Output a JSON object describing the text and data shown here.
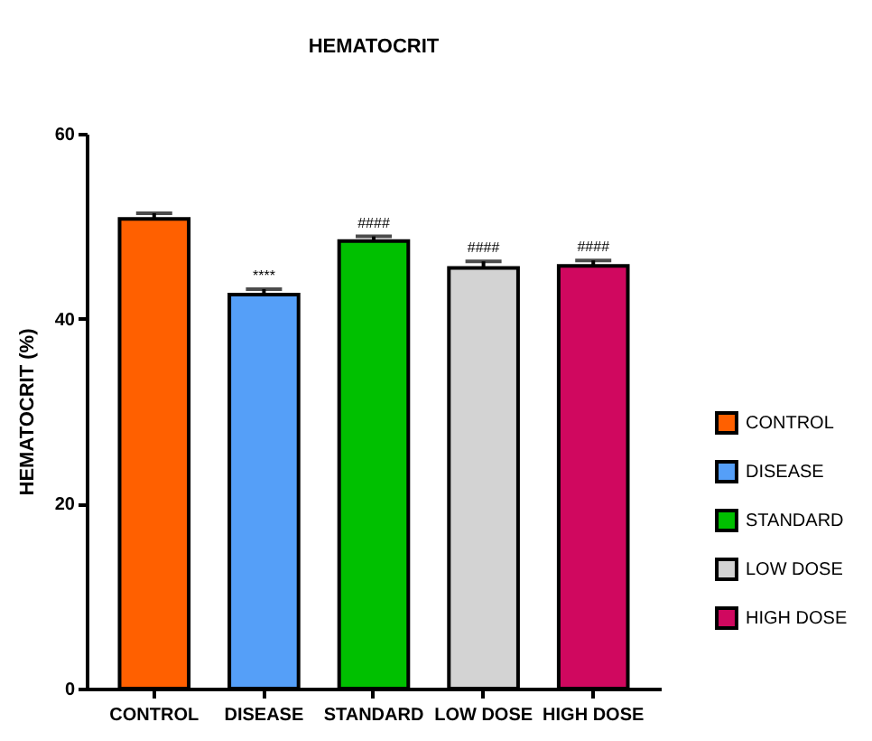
{
  "chart_data": {
    "type": "bar",
    "title": "HEMATOCRIT",
    "ylabel": "HEMATOCRIT (%)",
    "categories": [
      "CONTROL",
      "DISEASE",
      "STANDARD",
      "LOW DOSE",
      "HIGH DOSE"
    ],
    "series": [
      {
        "name": "CONTROL",
        "color": "#ff6000",
        "values": [
          50.8,
          null,
          null,
          null,
          null
        ],
        "errors": [
          [
            50.8,
            51.4
          ],
          null,
          null,
          null,
          null
        ]
      },
      {
        "name": "DISEASE",
        "color": "#559ff8",
        "values": [
          null,
          42.6,
          null,
          null,
          null
        ],
        "errors": [
          null,
          [
            42.6,
            43.2
          ],
          null,
          null,
          null
        ]
      },
      {
        "name": "STANDARD",
        "color": "#00c000",
        "values": [
          null,
          null,
          48.4,
          null,
          null
        ],
        "errors": [
          null,
          null,
          [
            48.4,
            48.9
          ],
          null,
          null
        ]
      },
      {
        "name": "LOW DOSE",
        "color": "#d3d3d3",
        "values": [
          null,
          null,
          null,
          45.5,
          null
        ],
        "errors": [
          null,
          null,
          null,
          [
            45.5,
            46.2
          ],
          null
        ]
      },
      {
        "name": "HIGH DOSE",
        "color": "#d0085f",
        "values": [
          null,
          null,
          null,
          null,
          45.7
        ],
        "errors": [
          null,
          null,
          null,
          null,
          [
            45.7,
            46.3
          ]
        ]
      }
    ],
    "ylim": [
      0,
      60
    ],
    "yticks": [
      0,
      20,
      40,
      60
    ],
    "grid": false,
    "legend": "right",
    "annotations": [
      {
        "text": "****",
        "x": "DISEASE",
        "y": 43.2
      },
      {
        "text": "####",
        "x": "STANDARD",
        "y": 48.9
      },
      {
        "text": "####",
        "x": "LOW DOSE",
        "y": 46.2
      },
      {
        "text": "####",
        "x": "HIGH DOSE",
        "y": 46.3
      }
    ]
  }
}
